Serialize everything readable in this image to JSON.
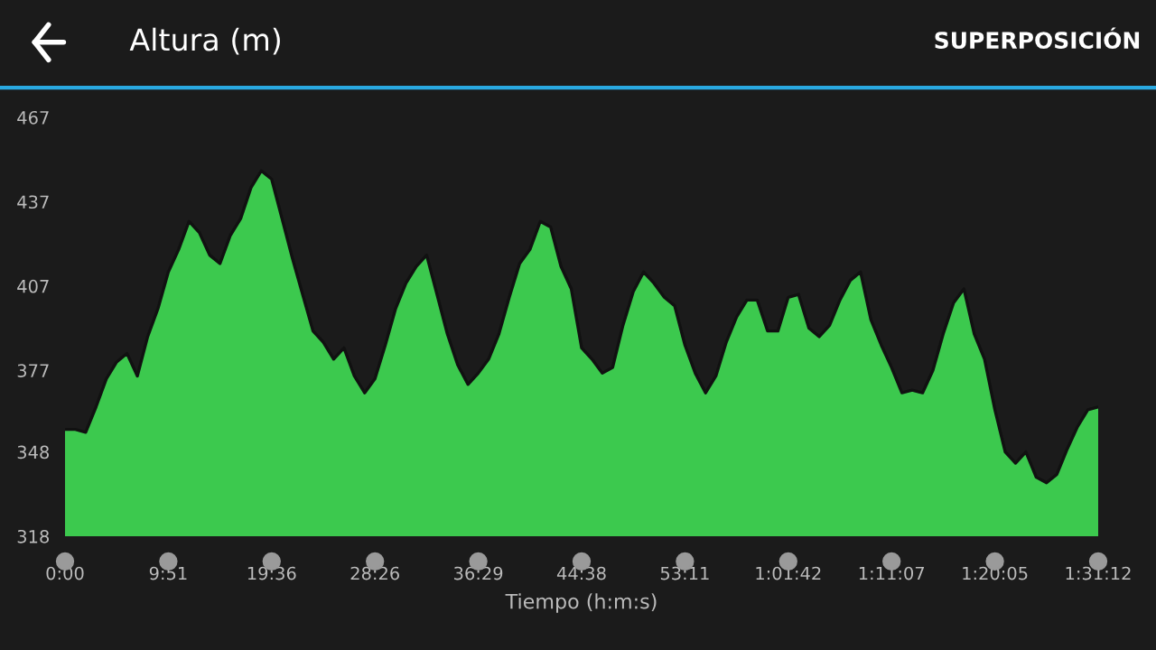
{
  "chart_data": {
    "type": "area",
    "title": "Altura (m)",
    "xlabel": "Tiempo (h:m:s)",
    "annotations": [
      "SUPERPOSICIÓN"
    ],
    "categories": [
      "0:00",
      null,
      null,
      null,
      null,
      null,
      null,
      null,
      null,
      null,
      "9:51",
      null,
      null,
      null,
      null,
      null,
      null,
      null,
      null,
      null,
      "19:36",
      null,
      null,
      null,
      null,
      null,
      null,
      null,
      null,
      null,
      "28:26",
      null,
      null,
      null,
      null,
      null,
      null,
      null,
      null,
      null,
      "36:29",
      null,
      null,
      null,
      null,
      null,
      null,
      null,
      null,
      null,
      "44:38",
      null,
      null,
      null,
      null,
      null,
      null,
      null,
      null,
      null,
      "53:11",
      null,
      null,
      null,
      null,
      null,
      null,
      null,
      null,
      null,
      "1:01:42",
      null,
      null,
      null,
      null,
      null,
      null,
      null,
      null,
      null,
      "1:11:07",
      null,
      null,
      null,
      null,
      null,
      null,
      null,
      null,
      null,
      "1:20:05",
      null,
      null,
      null,
      null,
      null,
      null,
      null,
      null,
      null,
      "1:31:12"
    ],
    "ylim": [
      318,
      467
    ],
    "yticks": [
      318,
      348,
      377,
      407,
      437,
      467
    ],
    "grid": false,
    "legend": false,
    "series": [
      {
        "color": "#3cc94e",
        "values": [
          356,
          356,
          355,
          364,
          374,
          380,
          383,
          375,
          389,
          399,
          412,
          420,
          430,
          426,
          418,
          415,
          425,
          431,
          442,
          448,
          445,
          431,
          417,
          404,
          391,
          387,
          381,
          385,
          375,
          369,
          374,
          386,
          399,
          408,
          414,
          418,
          404,
          390,
          379,
          372,
          376,
          381,
          390,
          403,
          415,
          420,
          430,
          428,
          414,
          406,
          385,
          381,
          376,
          378,
          393,
          405,
          412,
          408,
          403,
          400,
          386,
          376,
          369,
          375,
          387,
          396,
          402,
          402,
          391,
          391,
          403,
          404,
          392,
          389,
          393,
          402,
          409,
          412,
          395,
          386,
          378,
          369,
          370,
          369,
          377,
          390,
          401,
          406,
          390,
          381,
          363,
          348,
          344,
          348,
          339,
          337,
          340,
          349,
          357,
          363,
          364
        ]
      }
    ]
  }
}
